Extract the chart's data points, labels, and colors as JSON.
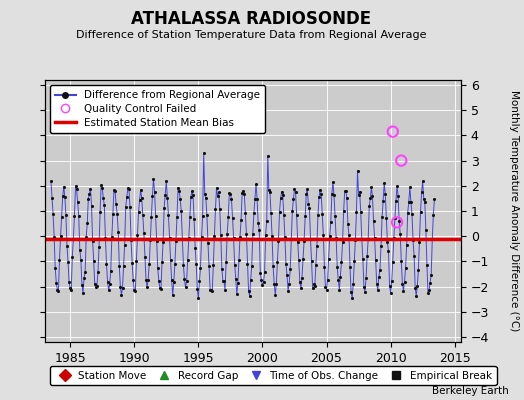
{
  "title": "ATHALASSA RADIOSONDE",
  "subtitle": "Difference of Station Temperature Data from Regional Average",
  "ylabel": "Monthly Temperature Anomaly Difference (°C)",
  "xlim": [
    1983.0,
    2015.5
  ],
  "ylim": [
    -4.2,
    6.2
  ],
  "yticks": [
    -4,
    -3,
    -2,
    -1,
    0,
    1,
    2,
    3,
    4,
    5,
    6
  ],
  "xticks": [
    1985,
    1990,
    1995,
    2000,
    2005,
    2010,
    2015
  ],
  "mean_bias": -0.12,
  "background_color": "#e0e0e0",
  "plot_bg_color": "#cccccc",
  "line_color": "#4444dd",
  "dot_color": "#111111",
  "bias_color": "#dd0000",
  "qc_color": "#ff44ff",
  "watermark": "Berkeley Earth",
  "legend_items": [
    {
      "label": "Difference from Regional Average"
    },
    {
      "label": "Quality Control Failed"
    },
    {
      "label": "Estimated Station Mean Bias"
    }
  ],
  "bottom_legend": [
    {
      "label": "Station Move",
      "color": "#cc0000",
      "marker": "D"
    },
    {
      "label": "Record Gap",
      "color": "#228B22",
      "marker": "^"
    },
    {
      "label": "Time of Obs. Change",
      "color": "#4444dd",
      "marker": "v"
    },
    {
      "label": "Empirical Break",
      "color": "#111111",
      "marker": "s"
    }
  ],
  "qc_failed_points": [
    [
      2010.17,
      4.15
    ],
    [
      2010.83,
      3.0
    ],
    [
      2010.5,
      0.55
    ]
  ],
  "data_start": 1983.5,
  "data_end": 2013.5
}
